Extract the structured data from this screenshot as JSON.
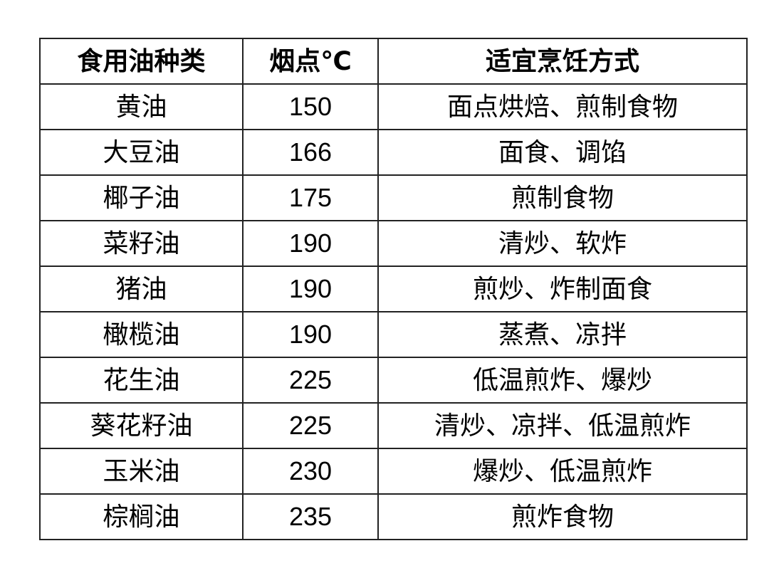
{
  "table": {
    "headers": [
      "食用油种类",
      "烟点℃",
      "适宜烹饪方式"
    ],
    "rows": [
      [
        "黄油",
        "150",
        "面点烘焙、煎制食物"
      ],
      [
        "大豆油",
        "166",
        "面食、调馅"
      ],
      [
        "椰子油",
        "175",
        "煎制食物"
      ],
      [
        "菜籽油",
        "190",
        "清炒、软炸"
      ],
      [
        "猪油",
        "190",
        "煎炒、炸制面食"
      ],
      [
        "橄榄油",
        "190",
        "蒸煮、凉拌"
      ],
      [
        "花生油",
        "225",
        "低温煎炸、爆炒"
      ],
      [
        "葵花籽油",
        "225",
        "清炒、凉拌、低温煎炸"
      ],
      [
        "玉米油",
        "230",
        "爆炒、低温煎炸"
      ],
      [
        "棕榈油",
        "235",
        "煎炸食物"
      ]
    ]
  }
}
